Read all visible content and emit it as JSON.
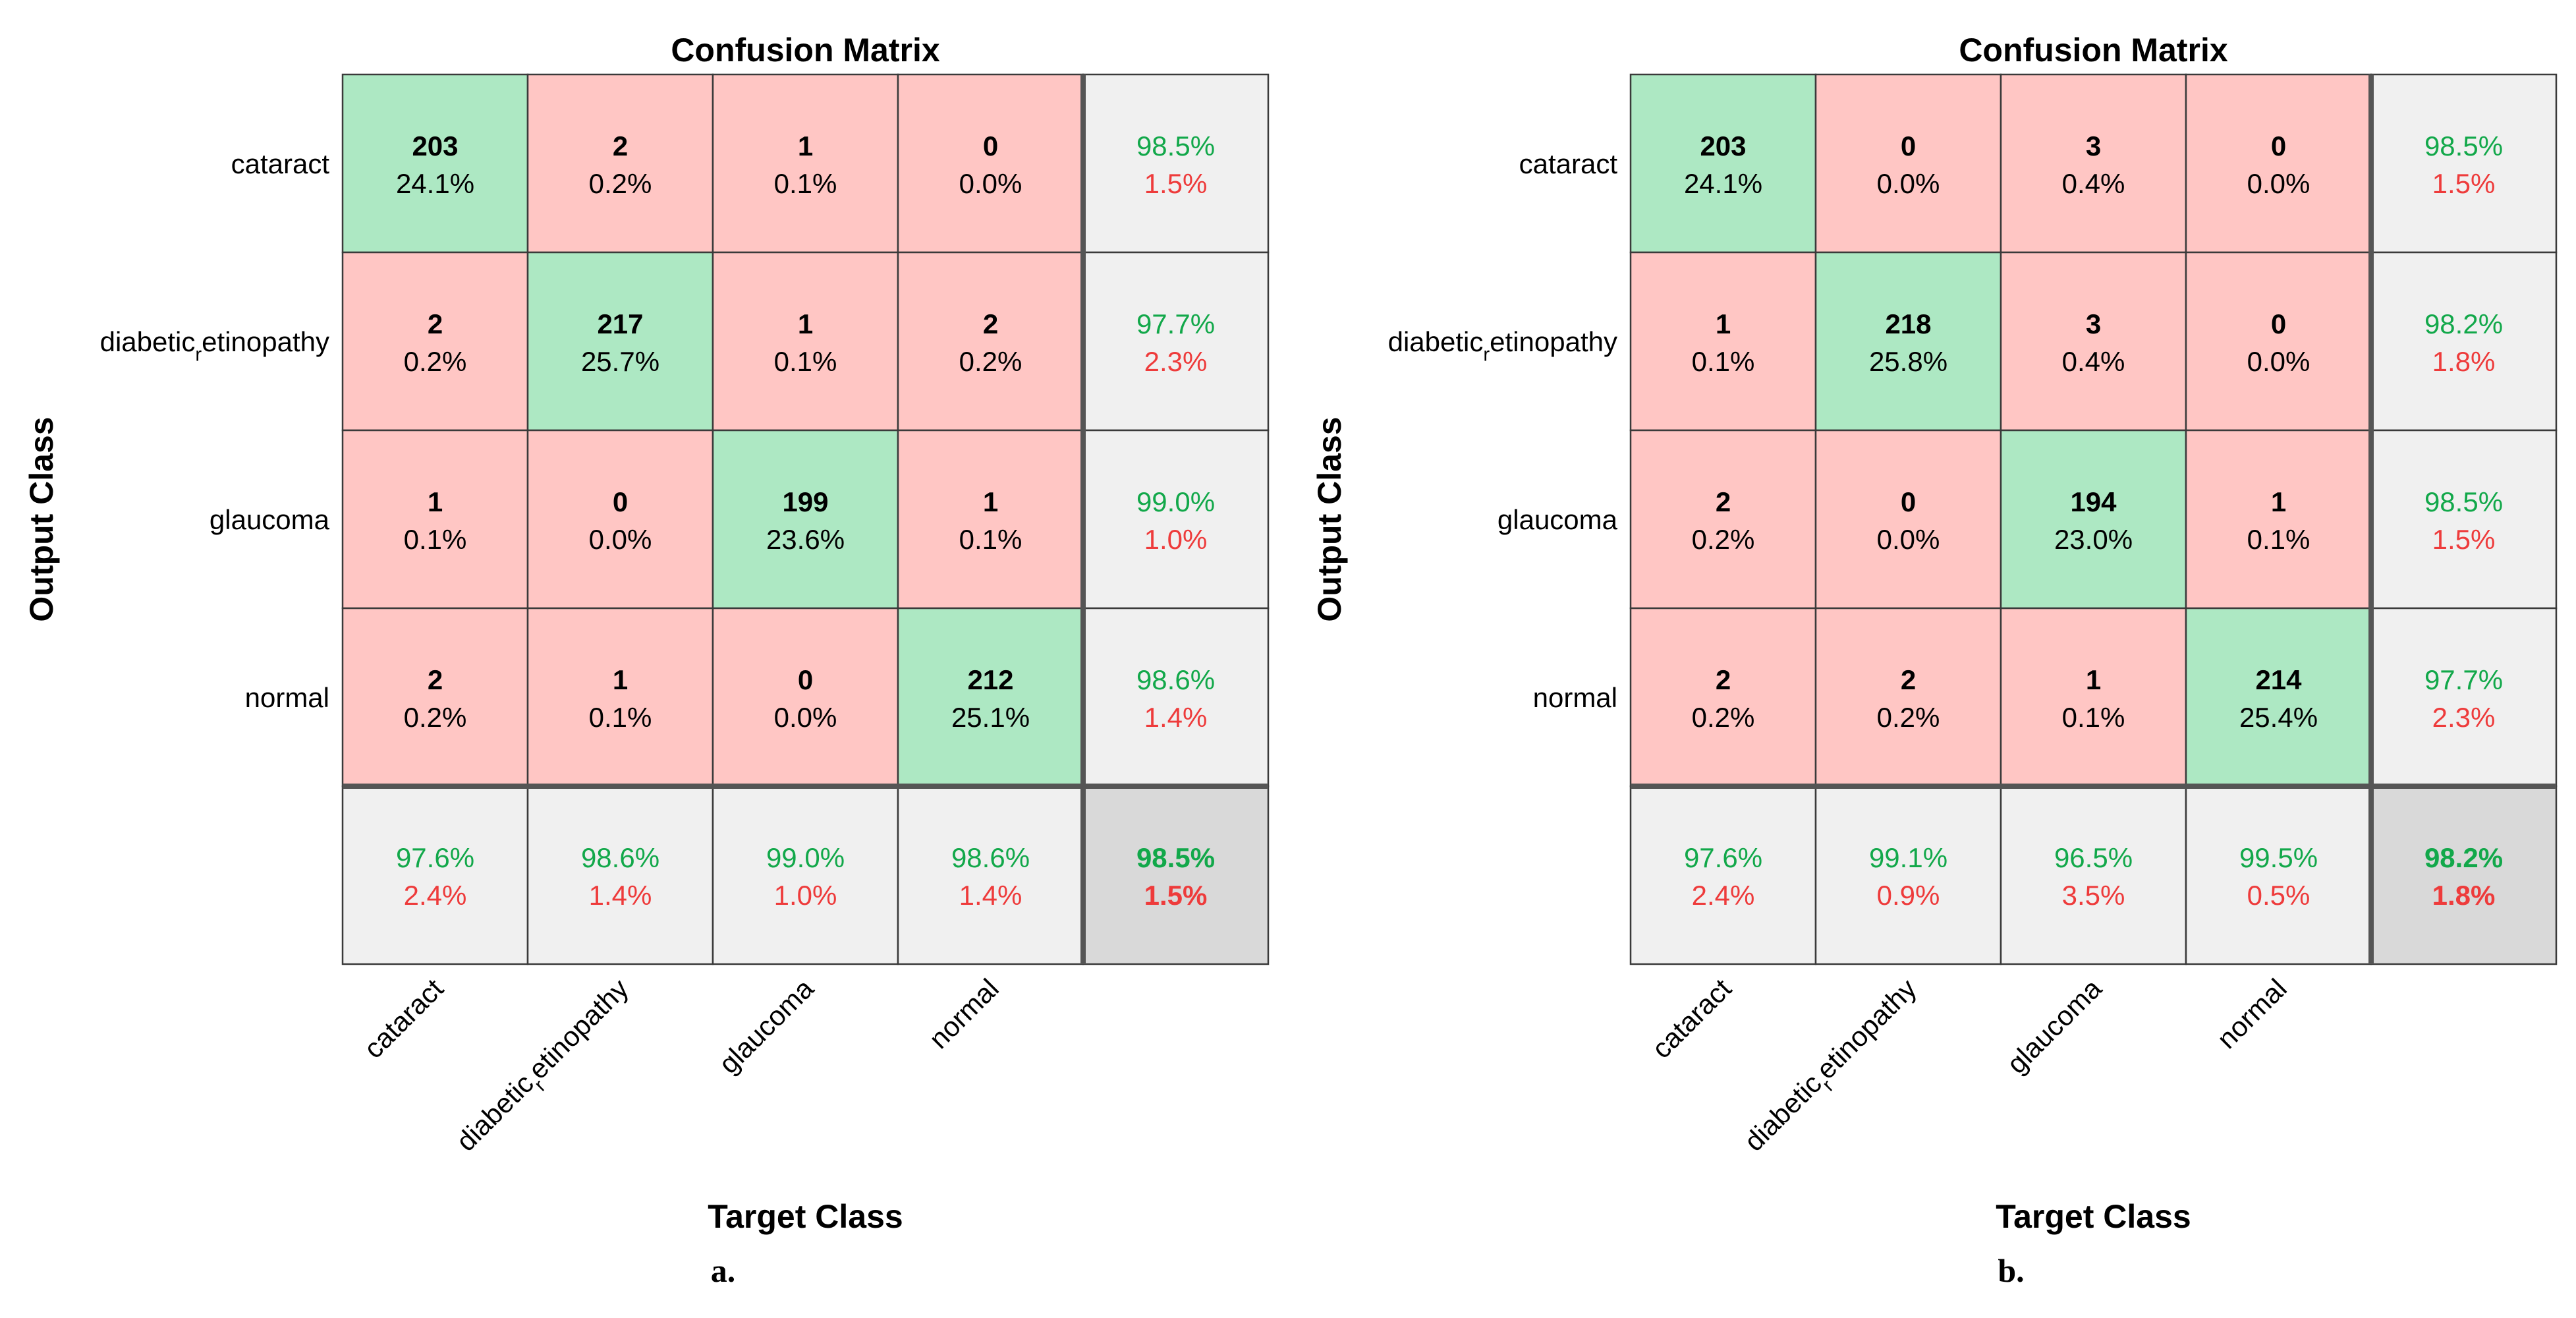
{
  "chart_data": [
    {
      "type": "heatmap",
      "panel_label": "a.",
      "title": "Confusion Matrix",
      "xlabel": "Target Class",
      "ylabel": "Output Class",
      "classes": [
        "cataract",
        "diabetic_retinopathy",
        "glaucoma",
        "normal"
      ],
      "class_labels": [
        {
          "base": "cataract",
          "sub": "",
          "rest": ""
        },
        {
          "base": "diabetic",
          "sub": "r",
          "rest": "etinopathy"
        },
        {
          "base": "glaucoma",
          "sub": "",
          "rest": ""
        },
        {
          "base": "normal",
          "sub": "",
          "rest": ""
        }
      ],
      "matrix": [
        [
          {
            "count": "203",
            "pct": "24.1%"
          },
          {
            "count": "2",
            "pct": "0.2%"
          },
          {
            "count": "1",
            "pct": "0.1%"
          },
          {
            "count": "0",
            "pct": "0.0%"
          }
        ],
        [
          {
            "count": "2",
            "pct": "0.2%"
          },
          {
            "count": "217",
            "pct": "25.7%"
          },
          {
            "count": "1",
            "pct": "0.1%"
          },
          {
            "count": "2",
            "pct": "0.2%"
          }
        ],
        [
          {
            "count": "1",
            "pct": "0.1%"
          },
          {
            "count": "0",
            "pct": "0.0%"
          },
          {
            "count": "199",
            "pct": "23.6%"
          },
          {
            "count": "1",
            "pct": "0.1%"
          }
        ],
        [
          {
            "count": "2",
            "pct": "0.2%"
          },
          {
            "count": "1",
            "pct": "0.1%"
          },
          {
            "count": "0",
            "pct": "0.0%"
          },
          {
            "count": "212",
            "pct": "25.1%"
          }
        ]
      ],
      "row_summary": [
        {
          "correct": "98.5%",
          "error": "1.5%"
        },
        {
          "correct": "97.7%",
          "error": "2.3%"
        },
        {
          "correct": "99.0%",
          "error": "1.0%"
        },
        {
          "correct": "98.6%",
          "error": "1.4%"
        }
      ],
      "col_summary": [
        {
          "correct": "97.6%",
          "error": "2.4%"
        },
        {
          "correct": "98.6%",
          "error": "1.4%"
        },
        {
          "correct": "99.0%",
          "error": "1.0%"
        },
        {
          "correct": "98.6%",
          "error": "1.4%"
        }
      ],
      "overall": {
        "correct": "98.5%",
        "error": "1.5%"
      }
    },
    {
      "type": "heatmap",
      "panel_label": "b.",
      "title": "Confusion Matrix",
      "xlabel": "Target Class",
      "ylabel": "Output Class",
      "classes": [
        "cataract",
        "diabetic_retinopathy",
        "glaucoma",
        "normal"
      ],
      "class_labels": [
        {
          "base": "cataract",
          "sub": "",
          "rest": ""
        },
        {
          "base": "diabetic",
          "sub": "r",
          "rest": "etinopathy"
        },
        {
          "base": "glaucoma",
          "sub": "",
          "rest": ""
        },
        {
          "base": "normal",
          "sub": "",
          "rest": ""
        }
      ],
      "matrix": [
        [
          {
            "count": "203",
            "pct": "24.1%"
          },
          {
            "count": "0",
            "pct": "0.0%"
          },
          {
            "count": "3",
            "pct": "0.4%"
          },
          {
            "count": "0",
            "pct": "0.0%"
          }
        ],
        [
          {
            "count": "1",
            "pct": "0.1%"
          },
          {
            "count": "218",
            "pct": "25.8%"
          },
          {
            "count": "3",
            "pct": "0.4%"
          },
          {
            "count": "0",
            "pct": "0.0%"
          }
        ],
        [
          {
            "count": "2",
            "pct": "0.2%"
          },
          {
            "count": "0",
            "pct": "0.0%"
          },
          {
            "count": "194",
            "pct": "23.0%"
          },
          {
            "count": "1",
            "pct": "0.1%"
          }
        ],
        [
          {
            "count": "2",
            "pct": "0.2%"
          },
          {
            "count": "2",
            "pct": "0.2%"
          },
          {
            "count": "1",
            "pct": "0.1%"
          },
          {
            "count": "214",
            "pct": "25.4%"
          }
        ]
      ],
      "row_summary": [
        {
          "correct": "98.5%",
          "error": "1.5%"
        },
        {
          "correct": "98.2%",
          "error": "1.8%"
        },
        {
          "correct": "98.5%",
          "error": "1.5%"
        },
        {
          "correct": "97.7%",
          "error": "2.3%"
        }
      ],
      "col_summary": [
        {
          "correct": "97.6%",
          "error": "2.4%"
        },
        {
          "correct": "99.1%",
          "error": "0.9%"
        },
        {
          "correct": "96.5%",
          "error": "3.5%"
        },
        {
          "correct": "99.5%",
          "error": "0.5%"
        }
      ],
      "overall": {
        "correct": "98.2%",
        "error": "1.8%"
      }
    }
  ],
  "colors": {
    "diagonal": "#ade8c3",
    "off_diagonal": "#ffc6c4",
    "summary": "#f0f0f0",
    "overall": "#d9d9d9",
    "correct_text": "#12a84a",
    "error_text": "#ee3b3b",
    "text": "#000000",
    "grid": "#3a3a3a"
  }
}
